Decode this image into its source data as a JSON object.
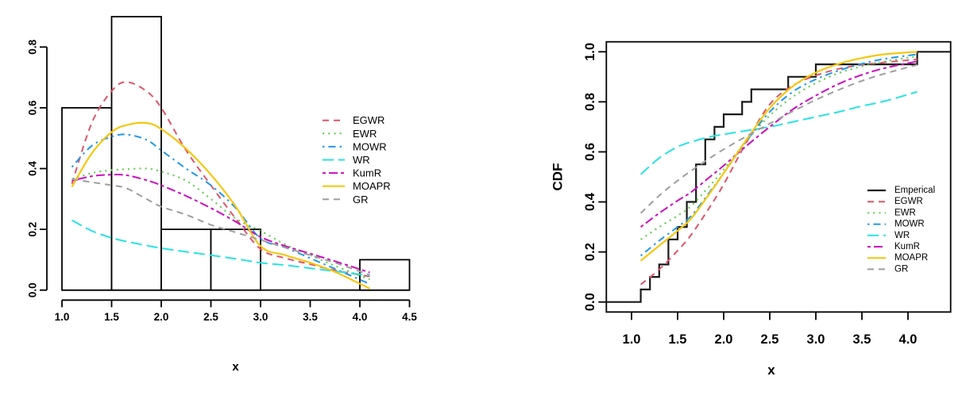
{
  "chart_data": [
    {
      "type": "bar",
      "subtype": "histogram-with-density-curves",
      "title": "",
      "xlabel": "x",
      "ylabel": "",
      "xlim": [
        1.0,
        4.5
      ],
      "ylim": [
        0.0,
        0.9
      ],
      "grid": false,
      "legend_position": "right-middle-no-box",
      "x_ticks": [
        "1.0",
        "1.5",
        "2.0",
        "2.5",
        "3.0",
        "3.5",
        "4.0",
        "4.5"
      ],
      "y_ticks": [
        "0.0",
        "0.2",
        "0.4",
        "0.6",
        "0.8"
      ],
      "histogram": {
        "breaks": [
          1.0,
          1.5,
          2.0,
          2.5,
          3.0,
          3.5,
          4.0,
          4.5
        ],
        "densities": [
          0.6,
          0.9,
          0.2,
          0.2,
          0.0,
          0.0,
          0.1
        ],
        "bar_fill": "#ffffff",
        "bar_stroke": "#000000"
      },
      "x_sample": [
        1.1,
        1.3,
        1.5,
        1.65,
        1.85,
        2.0,
        2.25,
        2.5,
        2.75,
        3.0,
        3.25,
        3.5,
        3.75,
        4.1
      ],
      "series": [
        {
          "name": "EGWR",
          "color": "#DF536B",
          "dash": "8,6",
          "width": 2,
          "y": [
            0.35,
            0.55,
            0.655,
            0.685,
            0.655,
            0.6,
            0.46,
            0.345,
            0.235,
            0.135,
            0.105,
            0.085,
            0.065,
            0.045
          ]
        },
        {
          "name": "EWR",
          "color": "#61D04F",
          "dash": "2.2,5",
          "width": 2,
          "y": [
            0.365,
            0.385,
            0.395,
            0.398,
            0.4,
            0.39,
            0.36,
            0.3,
            0.235,
            0.195,
            0.15,
            0.115,
            0.08,
            0.035
          ]
        },
        {
          "name": "MOWR",
          "color": "#2297E6",
          "dash": "2.5,5,9,5",
          "width": 2,
          "y": [
            0.405,
            0.475,
            0.505,
            0.512,
            0.495,
            0.46,
            0.4,
            0.345,
            0.27,
            0.17,
            0.14,
            0.105,
            0.07,
            0.02
          ]
        },
        {
          "name": "WR",
          "color": "#28E2E5",
          "dash": "14,6",
          "width": 2,
          "y": [
            0.23,
            0.195,
            0.172,
            0.16,
            0.147,
            0.138,
            0.126,
            0.115,
            0.103,
            0.09,
            0.082,
            0.072,
            0.062,
            0.048
          ]
        },
        {
          "name": "KumR",
          "color": "#CD0BBC",
          "dash": "4,4,11,4",
          "width": 2,
          "y": [
            0.36,
            0.375,
            0.38,
            0.378,
            0.362,
            0.345,
            0.31,
            0.27,
            0.225,
            0.175,
            0.145,
            0.12,
            0.095,
            0.058
          ]
        },
        {
          "name": "MOAPR",
          "color": "#F5C710",
          "dash": "",
          "width": 2.2,
          "y": [
            0.34,
            0.45,
            0.52,
            0.543,
            0.55,
            0.53,
            0.465,
            0.38,
            0.275,
            0.145,
            0.115,
            0.09,
            0.06,
            0.005
          ]
        },
        {
          "name": "GR",
          "color": "#9E9E9E",
          "dash": "8,6",
          "width": 2,
          "y": [
            0.365,
            0.355,
            0.345,
            0.335,
            0.3,
            0.275,
            0.248,
            0.215,
            0.19,
            0.165,
            0.14,
            0.115,
            0.09,
            0.05
          ]
        }
      ]
    },
    {
      "type": "line",
      "subtype": "empirical-cdf-with-fitted-curves",
      "title": "",
      "xlabel": "x",
      "ylabel": "CDF",
      "xlim": [
        1.0,
        4.1
      ],
      "ylim": [
        0.0,
        1.0
      ],
      "grid": false,
      "legend_position": "lower-right-no-box",
      "x_ticks": [
        "1.0",
        "1.5",
        "2.0",
        "2.5",
        "3.0",
        "3.5",
        "4.0"
      ],
      "y_ticks": [
        "0.0",
        "0.2",
        "0.4",
        "0.6",
        "0.8",
        "1.0"
      ],
      "empirical": {
        "name": "Emperical",
        "color": "#1a1a1a",
        "width": 2.2,
        "jumps": [
          [
            1.1,
            0.05
          ],
          [
            1.2,
            0.1
          ],
          [
            1.3,
            0.15
          ],
          [
            1.4,
            0.25
          ],
          [
            1.5,
            0.3
          ],
          [
            1.6,
            0.4
          ],
          [
            1.7,
            0.55
          ],
          [
            1.8,
            0.65
          ],
          [
            1.9,
            0.7
          ],
          [
            2.0,
            0.75
          ],
          [
            2.2,
            0.8
          ],
          [
            2.3,
            0.85
          ],
          [
            2.7,
            0.9
          ],
          [
            3.0,
            0.95
          ],
          [
            4.1,
            1.0
          ]
        ]
      },
      "x_sample": [
        1.1,
        1.3,
        1.5,
        1.65,
        1.85,
        2.0,
        2.25,
        2.5,
        2.75,
        3.0,
        3.25,
        3.5,
        3.75,
        4.1
      ],
      "series": [
        {
          "name": "EGWR",
          "color": "#DF536B",
          "dash": "8,6",
          "width": 2,
          "y": [
            0.07,
            0.13,
            0.205,
            0.27,
            0.38,
            0.47,
            0.64,
            0.79,
            0.865,
            0.905,
            0.932,
            0.948,
            0.958,
            0.97
          ]
        },
        {
          "name": "EWR",
          "color": "#61D04F",
          "dash": "2.2,5",
          "width": 2,
          "y": [
            0.25,
            0.3,
            0.345,
            0.385,
            0.465,
            0.53,
            0.645,
            0.745,
            0.82,
            0.875,
            0.915,
            0.942,
            0.962,
            0.982
          ]
        },
        {
          "name": "MOWR",
          "color": "#2297E6",
          "dash": "2.5,5,9,5",
          "width": 2,
          "y": [
            0.185,
            0.245,
            0.3,
            0.345,
            0.44,
            0.515,
            0.645,
            0.76,
            0.84,
            0.89,
            0.925,
            0.952,
            0.972,
            0.99
          ]
        },
        {
          "name": "WR",
          "color": "#28E2E5",
          "dash": "14,6",
          "width": 2,
          "y": [
            0.51,
            0.575,
            0.62,
            0.64,
            0.66,
            0.67,
            0.685,
            0.7,
            0.72,
            0.74,
            0.76,
            0.783,
            0.803,
            0.84
          ]
        },
        {
          "name": "KumR",
          "color": "#CD0BBC",
          "dash": "4,4,11,4",
          "width": 2,
          "y": [
            0.3,
            0.355,
            0.405,
            0.44,
            0.5,
            0.545,
            0.625,
            0.7,
            0.77,
            0.825,
            0.872,
            0.908,
            0.935,
            0.962
          ]
        },
        {
          "name": "MOAPR",
          "color": "#F5C710",
          "dash": "",
          "width": 2.2,
          "y": [
            0.165,
            0.225,
            0.285,
            0.335,
            0.435,
            0.515,
            0.65,
            0.775,
            0.862,
            0.917,
            0.952,
            0.975,
            0.99,
            1.0
          ]
        },
        {
          "name": "GR",
          "color": "#9E9E9E",
          "dash": "8,6",
          "width": 2,
          "y": [
            0.355,
            0.425,
            0.485,
            0.525,
            0.575,
            0.61,
            0.663,
            0.713,
            0.762,
            0.808,
            0.848,
            0.884,
            0.913,
            0.948
          ]
        }
      ]
    }
  ]
}
